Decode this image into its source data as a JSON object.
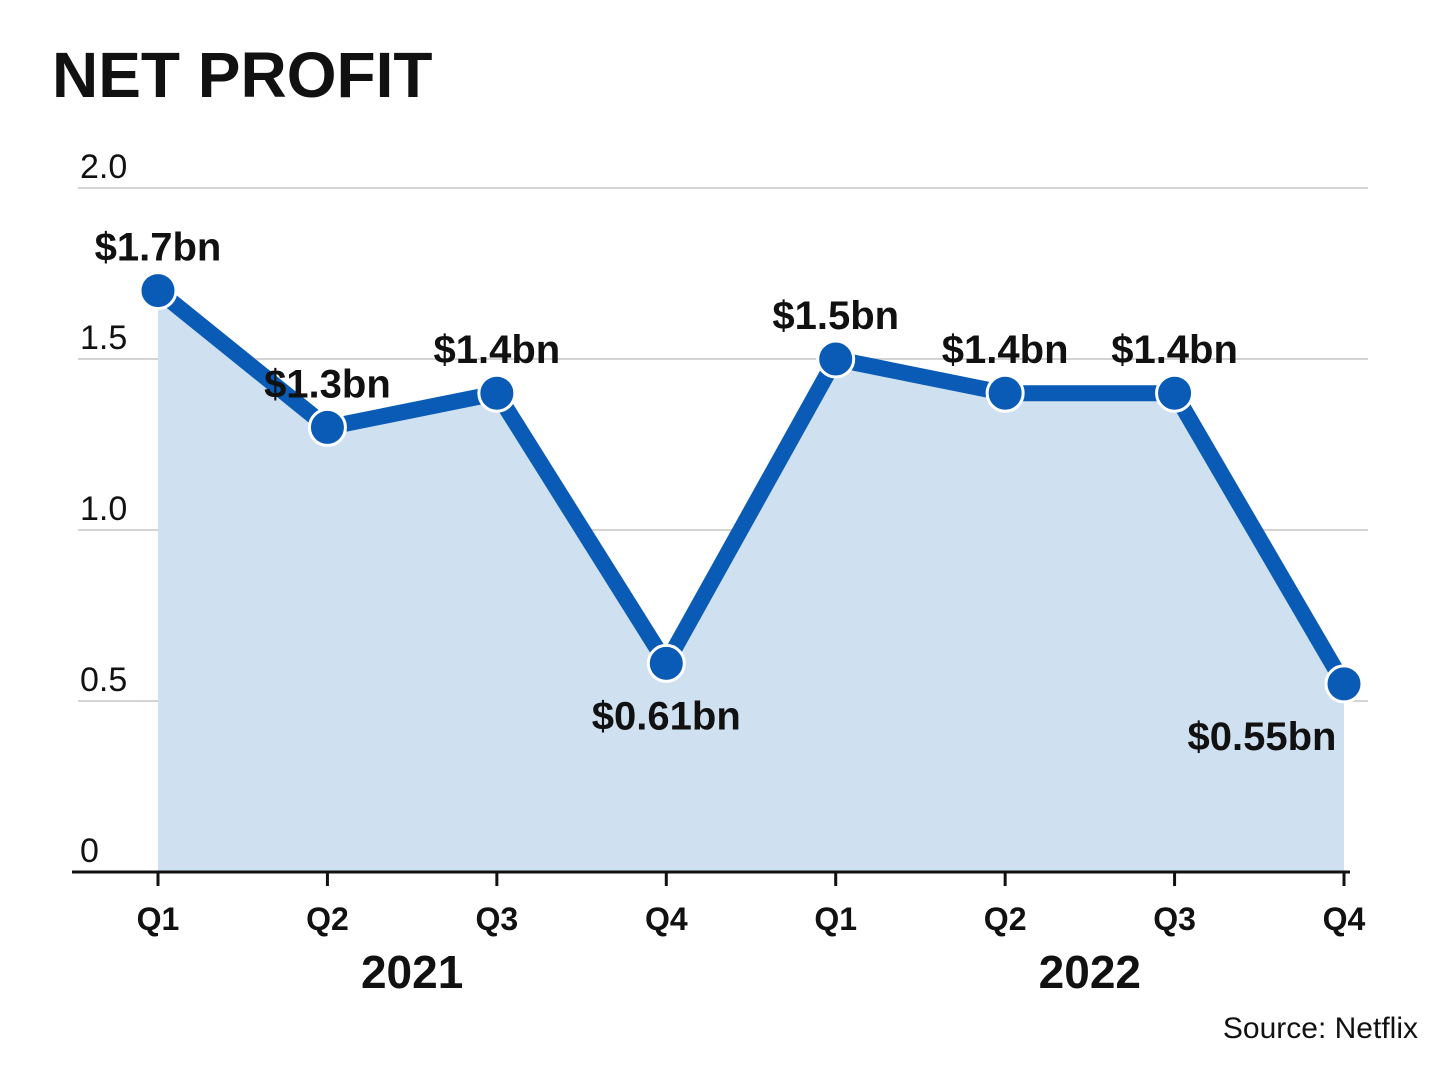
{
  "chart_data": {
    "type": "area",
    "title": "NET PROFIT",
    "source": "Source: Netflix",
    "categories": [
      "Q1",
      "Q2",
      "Q3",
      "Q4",
      "Q1",
      "Q2",
      "Q3",
      "Q4"
    ],
    "years": [
      {
        "label": "2021",
        "quarters": [
          0,
          3
        ]
      },
      {
        "label": "2022",
        "quarters": [
          4,
          7
        ]
      }
    ],
    "values": [
      1.7,
      1.3,
      1.4,
      0.61,
      1.5,
      1.4,
      1.4,
      0.55
    ],
    "data_labels": [
      "$1.7bn",
      "$1.3bn",
      "$1.4bn",
      "$0.61bn",
      "$1.5bn",
      "$1.4bn",
      "$1.4bn",
      "$0.55bn"
    ],
    "label_positions": [
      "above",
      "above",
      "above",
      "below",
      "above",
      "above",
      "above",
      "below"
    ],
    "yticks": [
      0,
      0.5,
      1.0,
      1.5,
      2.0
    ],
    "ytick_labels": [
      "0",
      "0.5",
      "1.0",
      "1.5",
      "2.0"
    ],
    "ylim": [
      0,
      2.0
    ],
    "grid": true,
    "colors": {
      "line": "#0a5bb5",
      "fill": "#cfe0f1",
      "grid": "#d4d4d4",
      "axis": "#111111",
      "marker_stroke": "#ffffff"
    }
  }
}
